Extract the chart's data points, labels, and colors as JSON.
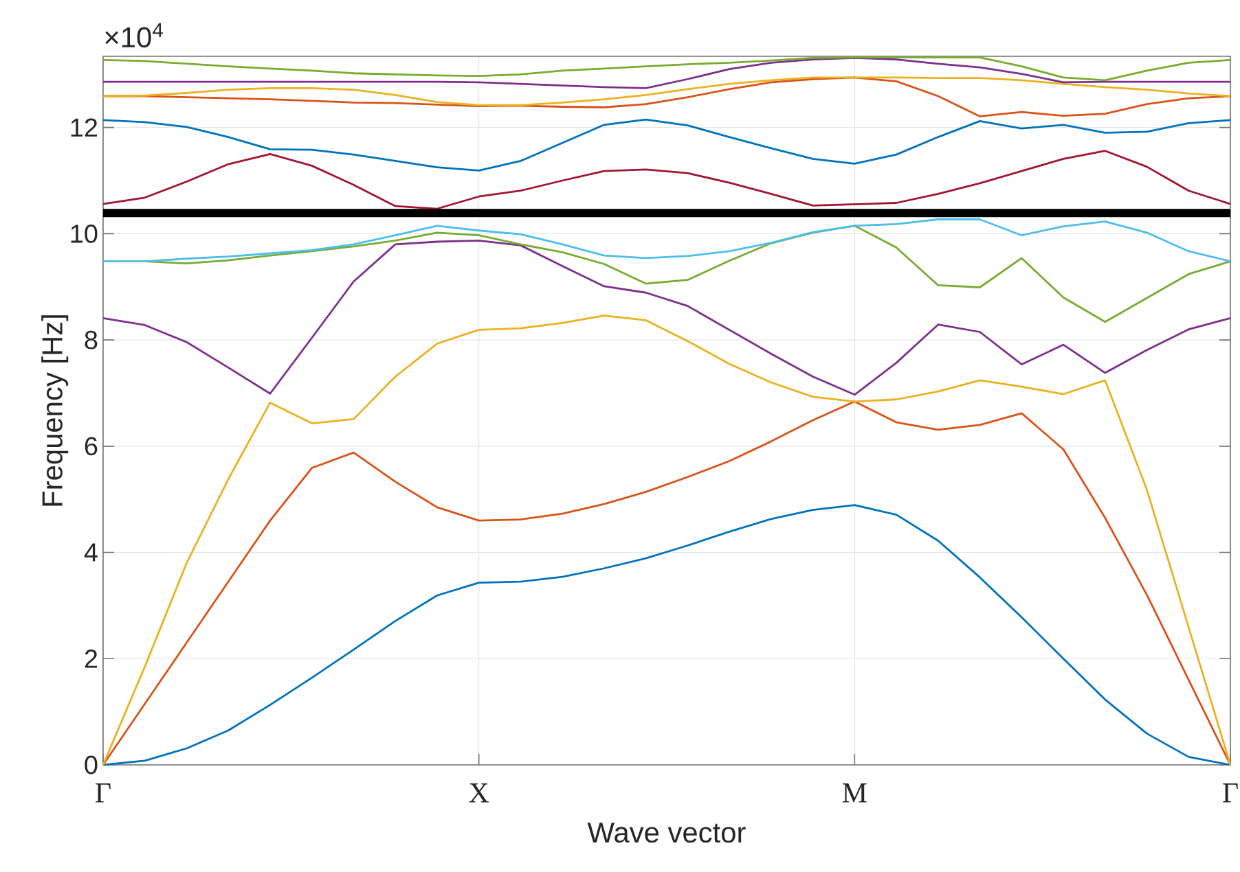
{
  "chart_data": {
    "type": "line",
    "xlabel": "Wave vector",
    "ylabel": "Frequency [Hz]",
    "annotations": [
      "×10$^{4}$"
    ],
    "categories": [
      "Γ",
      null,
      null,
      null,
      null,
      null,
      null,
      null,
      null,
      "X",
      null,
      null,
      null,
      null,
      null,
      null,
      null,
      null,
      "M",
      null,
      null,
      null,
      null,
      null,
      null,
      null,
      null,
      "Γ"
    ],
    "ylim": [
      0,
      13.34
    ],
    "yticks": [
      0,
      2,
      4,
      6,
      8,
      10,
      12
    ],
    "grid": true,
    "ref_lines": [
      {
        "axis": "y",
        "value": 10.39,
        "color": "#000000"
      }
    ],
    "series": [
      {
        "color": "#0072bd",
        "values": [
          0,
          0.08,
          0.31,
          0.65,
          1.13,
          1.64,
          2.17,
          2.71,
          3.19,
          3.43,
          3.45,
          3.54,
          3.7,
          3.89,
          4.13,
          4.39,
          4.63,
          4.8,
          4.89,
          4.71,
          4.22,
          3.53,
          2.78,
          2.0,
          1.23,
          0.59,
          0.15,
          0
        ]
      },
      {
        "color": "#d95319",
        "values": [
          0,
          1.15,
          2.3,
          3.45,
          4.6,
          5.59,
          5.88,
          5.33,
          4.85,
          4.6,
          4.62,
          4.73,
          4.91,
          5.14,
          5.42,
          5.72,
          6.09,
          6.49,
          6.84,
          6.45,
          6.31,
          6.4,
          6.62,
          5.94,
          4.65,
          3.2,
          1.6,
          0
        ]
      },
      {
        "color": "#edb120",
        "values": [
          0,
          1.85,
          3.8,
          5.38,
          6.82,
          6.43,
          6.51,
          7.31,
          7.93,
          8.19,
          8.22,
          8.32,
          8.46,
          8.37,
          7.98,
          7.55,
          7.2,
          6.93,
          6.84,
          6.88,
          7.03,
          7.24,
          7.12,
          6.98,
          7.24,
          5.18,
          2.59,
          0
        ]
      },
      {
        "color": "#7e2f8e",
        "values": [
          8.41,
          8.28,
          7.96,
          7.48,
          6.99,
          8.04,
          9.1,
          9.8,
          9.85,
          9.87,
          9.78,
          9.39,
          9.01,
          8.89,
          8.64,
          8.19,
          7.74,
          7.31,
          6.97,
          7.57,
          8.29,
          8.15,
          7.54,
          7.91,
          7.38,
          7.81,
          8.2,
          8.41
        ]
      },
      {
        "color": "#77ac30",
        "values": [
          9.48,
          9.48,
          9.44,
          9.5,
          9.59,
          9.67,
          9.76,
          9.87,
          10.02,
          9.97,
          9.8,
          9.65,
          9.43,
          9.06,
          9.13,
          9.49,
          9.82,
          10.02,
          10.15,
          9.74,
          9.03,
          8.99,
          9.54,
          8.8,
          8.34,
          8.79,
          9.24,
          9.48
        ]
      },
      {
        "color": "#4dbeee",
        "values": [
          9.48,
          9.48,
          9.53,
          9.57,
          9.63,
          9.69,
          9.8,
          9.97,
          10.15,
          10.06,
          9.99,
          9.8,
          9.59,
          9.54,
          9.58,
          9.67,
          9.83,
          10.03,
          10.15,
          10.18,
          10.27,
          10.27,
          9.97,
          10.14,
          10.23,
          10.02,
          9.67,
          9.48
        ]
      },
      {
        "color": "#a2142f",
        "values": [
          10.56,
          10.68,
          10.98,
          11.31,
          11.5,
          11.28,
          10.92,
          10.52,
          10.47,
          10.7,
          10.81,
          11.0,
          11.18,
          11.21,
          11.14,
          10.96,
          10.75,
          10.53,
          null,
          10.58,
          10.75,
          10.95,
          11.18,
          11.41,
          11.56,
          11.26,
          10.81,
          10.56
        ]
      },
      {
        "color": "#0072bd",
        "values": [
          12.14,
          12.1,
          12.01,
          11.82,
          11.59,
          11.58,
          11.49,
          11.37,
          11.25,
          11.19,
          11.37,
          11.71,
          12.05,
          12.15,
          12.04,
          11.82,
          11.61,
          11.41,
          11.32,
          11.49,
          11.82,
          12.12,
          11.98,
          12.05,
          11.9,
          11.92,
          12.08,
          12.14
        ]
      },
      {
        "color": "#d95319",
        "values": [
          12.59,
          12.59,
          12.57,
          12.55,
          12.53,
          12.5,
          12.47,
          12.46,
          12.43,
          12.4,
          12.41,
          12.39,
          12.38,
          12.44,
          12.57,
          12.72,
          12.85,
          12.91,
          12.94,
          12.87,
          12.59,
          12.21,
          12.29,
          12.22,
          12.26,
          12.44,
          12.55,
          12.59
        ]
      },
      {
        "color": "#edb120",
        "values": [
          12.59,
          12.6,
          12.65,
          12.71,
          12.74,
          12.74,
          12.71,
          12.61,
          12.48,
          12.42,
          12.42,
          12.47,
          12.53,
          12.61,
          12.72,
          12.82,
          12.89,
          12.94,
          12.94,
          12.94,
          12.93,
          12.93,
          12.89,
          12.82,
          12.76,
          12.71,
          12.64,
          12.59
        ]
      },
      {
        "color": "#7e2f8e",
        "values": [
          12.86,
          12.86,
          12.86,
          12.86,
          12.86,
          12.86,
          12.86,
          12.86,
          12.86,
          12.85,
          12.82,
          12.79,
          12.76,
          12.74,
          12.91,
          13.1,
          13.22,
          13.28,
          13.31,
          13.28,
          13.2,
          13.13,
          13.01,
          12.85,
          12.86,
          12.86,
          12.86,
          12.86
        ]
      },
      {
        "color": "#77ac30",
        "values": [
          13.27,
          13.25,
          13.2,
          13.15,
          13.11,
          13.07,
          13.02,
          13.0,
          12.98,
          12.97,
          13.0,
          13.07,
          13.11,
          13.15,
          13.19,
          13.22,
          13.26,
          13.31,
          13.32,
          13.32,
          13.32,
          13.32,
          13.15,
          12.94,
          12.89,
          13.07,
          13.22,
          13.27
        ]
      }
    ]
  }
}
